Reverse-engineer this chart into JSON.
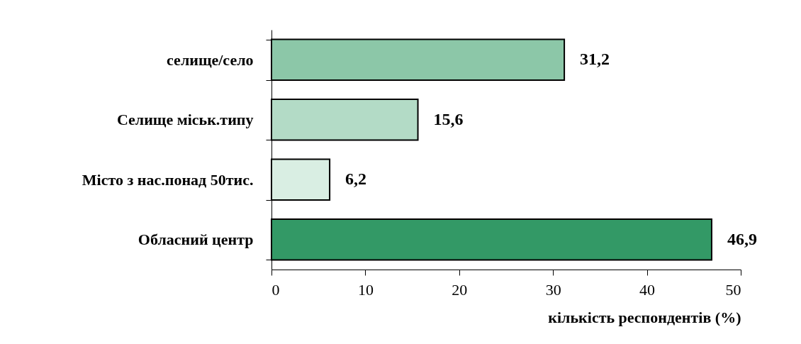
{
  "chart_data": {
    "type": "bar",
    "orientation": "horizontal",
    "xlabel": "кількість респондентів (%)",
    "categories": [
      "селище/село",
      "Селище міськ.типу",
      "Місто з нас.понад 50тис.",
      "Обласний центр"
    ],
    "values": [
      31.2,
      15.6,
      6.2,
      46.9
    ],
    "value_labels": [
      "31,2",
      "15,6",
      "6,2",
      "46,9"
    ],
    "colors": [
      "#8cc7a8",
      "#b3dbc6",
      "#d9eee3",
      "#339966"
    ],
    "xlim": [
      0,
      50
    ],
    "xticks": [
      0,
      10,
      20,
      30,
      40,
      50
    ],
    "grid": false
  }
}
